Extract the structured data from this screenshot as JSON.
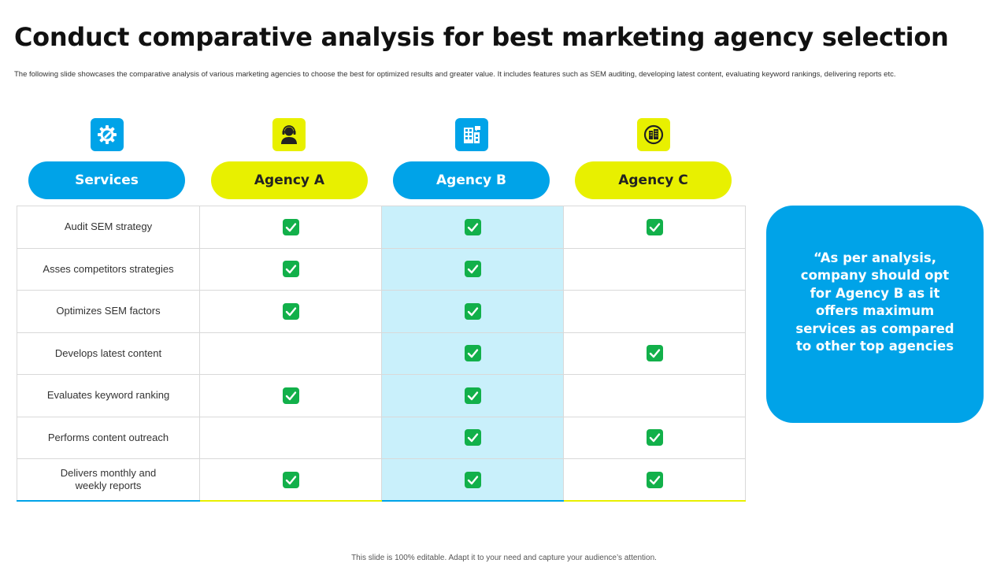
{
  "title": "Conduct comparative analysis for best marketing agency selection",
  "subtitle": "The following slide showcases the comparative analysis of various marketing agencies to choose the best for optimized results and greater value. It includes features such as SEM auditing, developing latest content, evaluating keyword rankings, delivering reports etc.",
  "columns": [
    {
      "label": "Services",
      "icon": "settings-gear-icon",
      "color": "#00a3e8"
    },
    {
      "label": "Agency A",
      "icon": "agent-headset-icon",
      "color": "#e8f000"
    },
    {
      "label": "Agency B",
      "icon": "office-building-icon",
      "color": "#00a3e8"
    },
    {
      "label": "Agency C",
      "icon": "building-badge-icon",
      "color": "#e8f000"
    }
  ],
  "rows": [
    {
      "service": "Audit SEM strategy",
      "a": true,
      "b": true,
      "c": true
    },
    {
      "service": "Asses competitors strategies",
      "a": true,
      "b": true,
      "c": false
    },
    {
      "service": "Optimizes SEM factors",
      "a": true,
      "b": true,
      "c": false
    },
    {
      "service": "Develops  latest content",
      "a": false,
      "b": true,
      "c": true
    },
    {
      "service": "Evaluates  keyword ranking",
      "a": true,
      "b": true,
      "c": false
    },
    {
      "service": "Performs  content outreach",
      "a": false,
      "b": true,
      "c": true
    },
    {
      "service_lines": [
        "Delivers  monthly and",
        "weekly reports"
      ],
      "a": true,
      "b": true,
      "c": true
    }
  ],
  "callout": "“As per analysis, company should opt for Agency B as it offers maximum services as compared to other top agencies",
  "footer": "This slide is 100% editable.  Adapt it to your need and capture your audience’s attention.",
  "colors": {
    "blue": "#00a3e8",
    "yellow": "#e8f000",
    "highlight": "#c9f0fb",
    "check": "#12b04a"
  }
}
